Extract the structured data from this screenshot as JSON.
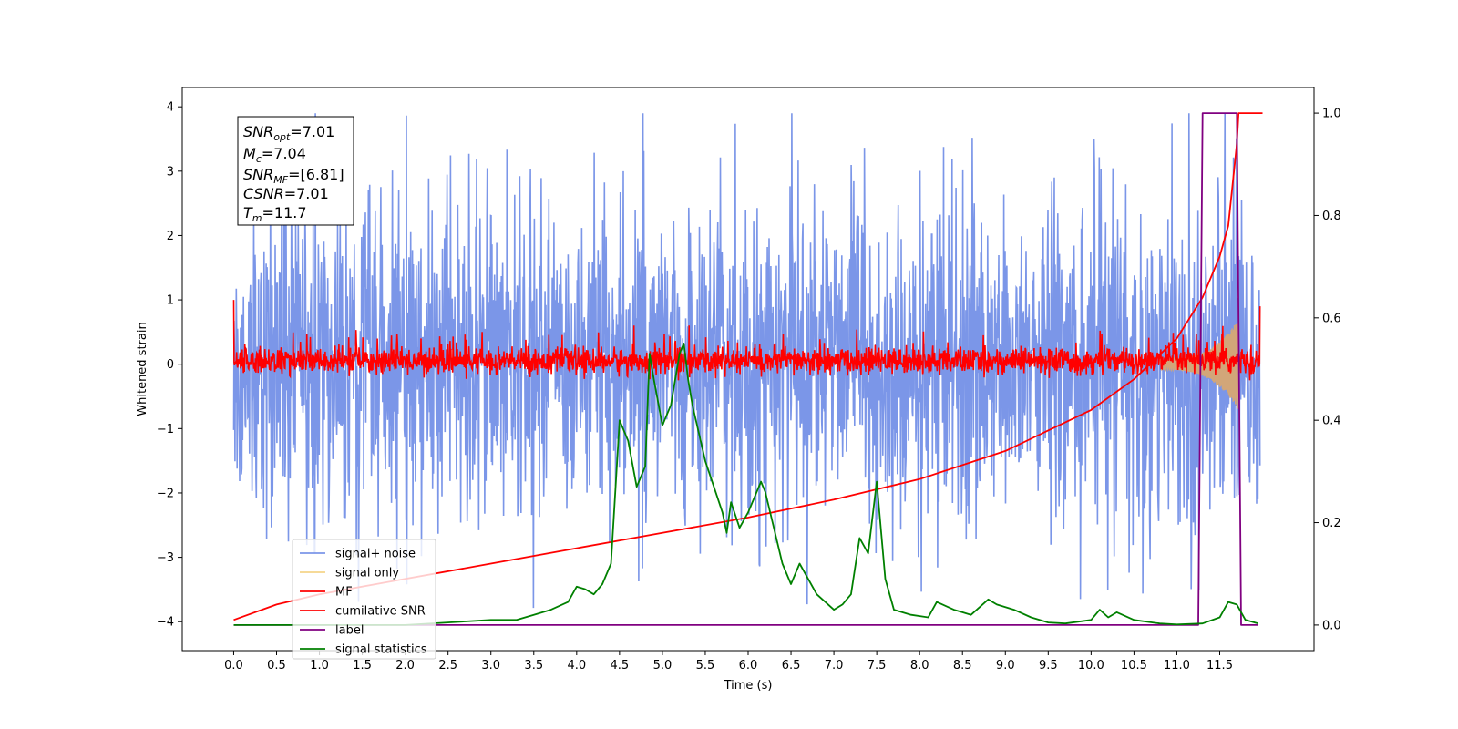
{
  "chart_data": {
    "type": "line",
    "xlabel": "Time (s)",
    "ylabel": "Whitened strain",
    "xlim": [
      -0.6,
      12.6
    ],
    "ylim": [
      -4.45,
      4.3
    ],
    "y2lim": [
      -0.05,
      1.05
    ],
    "x_ticks": [
      "0.0",
      "0.5",
      "1.0",
      "1.5",
      "2.0",
      "2.5",
      "3.0",
      "3.5",
      "4.0",
      "4.5",
      "5.0",
      "5.5",
      "6.0",
      "6.5",
      "7.0",
      "7.5",
      "8.0",
      "8.5",
      "9.0",
      "9.5",
      "10.0",
      "10.5",
      "11.0",
      "11.5"
    ],
    "y_ticks": [
      "−4",
      "−3",
      "−2",
      "−1",
      "0",
      "1",
      "2",
      "3",
      "4"
    ],
    "y2_ticks": [
      "0.0",
      "0.2",
      "0.4",
      "0.6",
      "0.8",
      "1.0"
    ],
    "annotation": {
      "snr_opt": {
        "sym": "SNR",
        "sub": "opt",
        "val": "=7.01"
      },
      "mc": {
        "sym": "M",
        "sub": "c",
        "val": "=7.04"
      },
      "snr_mf": {
        "sym": "SNR",
        "sub": "MF",
        "val": "=[6.81]"
      },
      "csnr": {
        "sym": "CSNR",
        "sub": "",
        "val": "=7.01"
      },
      "tm": {
        "sym": "T",
        "sub": "m",
        "val": "=11.7"
      }
    },
    "series": [
      {
        "name": "signal+ noise",
        "color": "#7b96e8",
        "axis": "left",
        "kind": "noise",
        "amplitude_range": [
          -3.8,
          3.9
        ]
      },
      {
        "name": "signal only",
        "color": "#f5d48a",
        "axis": "left",
        "kind": "chirp",
        "x_range": [
          10.8,
          11.72
        ],
        "peak_amplitude": 0.7
      },
      {
        "name": "MF",
        "color": "#ff0000",
        "axis": "left",
        "kind": "noise",
        "amplitude_range": [
          -0.25,
          0.6
        ]
      },
      {
        "name": "cumilative SNR",
        "color": "#ff0000",
        "axis": "right",
        "x": [
          0.0,
          0.5,
          1.0,
          2.0,
          3.0,
          4.0,
          5.0,
          6.0,
          7.0,
          8.0,
          9.0,
          10.0,
          10.5,
          11.0,
          11.3,
          11.5,
          11.6,
          11.7,
          11.72,
          12.0
        ],
        "y": [
          0.01,
          0.04,
          0.06,
          0.09,
          0.12,
          0.15,
          0.18,
          0.21,
          0.245,
          0.285,
          0.34,
          0.42,
          0.48,
          0.56,
          0.64,
          0.72,
          0.78,
          0.94,
          1.0,
          1.0
        ]
      },
      {
        "name": "label",
        "color": "#800080",
        "axis": "right",
        "x": [
          0.0,
          11.25,
          11.3,
          11.7,
          11.75,
          11.95
        ],
        "y": [
          0.0,
          0.0,
          1.0,
          1.0,
          0.0,
          0.0
        ]
      },
      {
        "name": "signal statistics",
        "color": "#008000",
        "axis": "right",
        "x": [
          0.0,
          1.0,
          2.0,
          2.5,
          3.0,
          3.3,
          3.5,
          3.7,
          3.9,
          4.0,
          4.1,
          4.2,
          4.3,
          4.4,
          4.5,
          4.6,
          4.7,
          4.8,
          4.85,
          4.9,
          5.0,
          5.1,
          5.2,
          5.25,
          5.3,
          5.35,
          5.5,
          5.6,
          5.7,
          5.75,
          5.8,
          5.9,
          6.0,
          6.15,
          6.2,
          6.3,
          6.4,
          6.5,
          6.6,
          6.8,
          7.0,
          7.1,
          7.2,
          7.3,
          7.4,
          7.5,
          7.6,
          7.7,
          7.9,
          8.1,
          8.2,
          8.4,
          8.5,
          8.6,
          8.8,
          8.9,
          9.1,
          9.3,
          9.5,
          9.7,
          10.0,
          10.1,
          10.2,
          10.3,
          10.5,
          10.8,
          11.0,
          11.3,
          11.5,
          11.6,
          11.7,
          11.8,
          11.95
        ],
        "y": [
          0.0,
          0.0,
          0.0,
          0.005,
          0.01,
          0.01,
          0.02,
          0.03,
          0.045,
          0.075,
          0.07,
          0.06,
          0.08,
          0.12,
          0.4,
          0.36,
          0.27,
          0.31,
          0.53,
          0.48,
          0.39,
          0.43,
          0.53,
          0.55,
          0.48,
          0.43,
          0.32,
          0.27,
          0.22,
          0.18,
          0.24,
          0.19,
          0.22,
          0.28,
          0.26,
          0.19,
          0.12,
          0.08,
          0.12,
          0.06,
          0.03,
          0.04,
          0.06,
          0.17,
          0.14,
          0.28,
          0.09,
          0.03,
          0.02,
          0.015,
          0.045,
          0.03,
          0.025,
          0.02,
          0.05,
          0.04,
          0.03,
          0.015,
          0.005,
          0.003,
          0.01,
          0.03,
          0.015,
          0.025,
          0.01,
          0.003,
          0.001,
          0.003,
          0.015,
          0.045,
          0.04,
          0.01,
          0.003
        ]
      }
    ]
  }
}
